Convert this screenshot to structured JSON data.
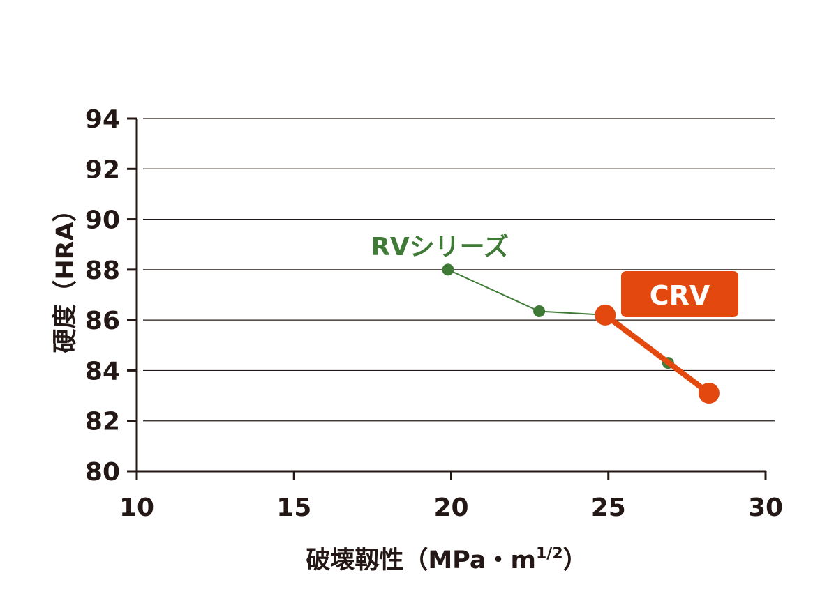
{
  "chart_data": {
    "type": "line",
    "xlabel": "破壊靱性（MPa・m",
    "xlabel_sup": "1/2",
    "xlabel_end": "）",
    "ylabel": "硬度（HRA）",
    "xlim": [
      10,
      30
    ],
    "ylim": [
      80,
      94
    ],
    "x_ticks": [
      "10",
      "15",
      "20",
      "25",
      "30"
    ],
    "y_ticks": [
      "80",
      "82",
      "84",
      "86",
      "88",
      "90",
      "92",
      "94"
    ],
    "grid": true,
    "series": [
      {
        "name": "RVシリーズ",
        "color": "#3f7a37",
        "label_style": "text",
        "points": [
          {
            "x": 19.9,
            "y": 88.0
          },
          {
            "x": 22.8,
            "y": 86.35
          },
          {
            "x": 24.9,
            "y": 86.2
          },
          {
            "x": 26.9,
            "y": 84.3
          }
        ]
      },
      {
        "name": "CRV",
        "color": "#e3490f",
        "label_style": "badge",
        "points": [
          {
            "x": 24.9,
            "y": 86.2
          },
          {
            "x": 28.2,
            "y": 83.1
          }
        ]
      }
    ]
  }
}
